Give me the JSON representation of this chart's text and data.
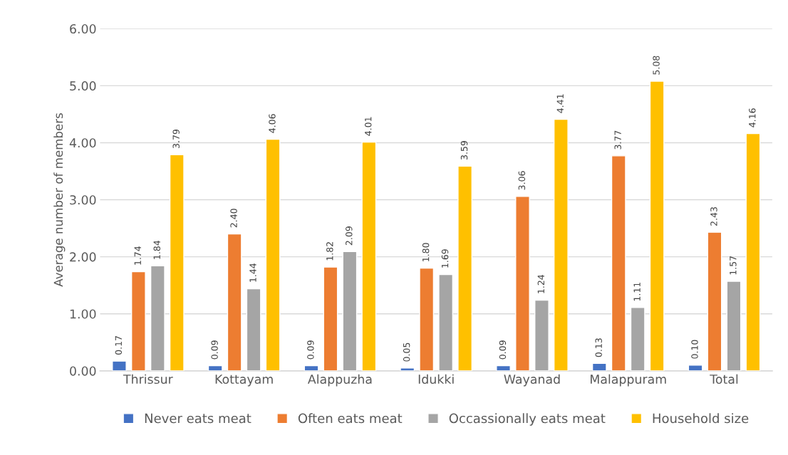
{
  "chart_data": {
    "type": "bar",
    "ylabel": "Average number of members",
    "categories": [
      "Thrissur",
      "Kottayam",
      "Alappuzha",
      "Idukki",
      "Wayanad",
      "Malappuram",
      "Total"
    ],
    "series": [
      {
        "name": "Never eats meat",
        "color": "#4472c4",
        "values": [
          0.17,
          0.09,
          0.09,
          0.05,
          0.09,
          0.13,
          0.1
        ],
        "value_labels": [
          "0.17",
          "0.09",
          "0.09",
          "0.05",
          "0.09",
          "0.13",
          "0.10"
        ]
      },
      {
        "name": "Often eats meat",
        "color": "#ed7d31",
        "values": [
          1.74,
          2.4,
          1.82,
          1.8,
          3.06,
          3.77,
          2.43
        ],
        "value_labels": [
          "1.74",
          "2.40",
          "1.82",
          "1.80",
          "3.06",
          "3.77",
          "2.43"
        ]
      },
      {
        "name": "Occassionally eats meat",
        "color": "#a5a5a5",
        "values": [
          1.84,
          1.44,
          2.09,
          1.69,
          1.24,
          1.11,
          1.57
        ],
        "value_labels": [
          "1.84",
          "1.44",
          "2.09",
          "1.69",
          "1.24",
          "1.11",
          "1.57"
        ]
      },
      {
        "name": "Household size",
        "color": "#ffc000",
        "values": [
          3.79,
          4.06,
          4.01,
          3.59,
          4.41,
          5.08,
          4.16
        ],
        "value_labels": [
          "3.79",
          "4.06",
          "4.01",
          "3.59",
          "4.41",
          "5.08",
          "4.16"
        ]
      }
    ],
    "ylim": [
      0,
      6
    ],
    "yticks": [
      {
        "value": 0,
        "label": "0.00"
      },
      {
        "value": 1,
        "label": "1.00"
      },
      {
        "value": 2,
        "label": "2.00"
      },
      {
        "value": 3,
        "label": "3.00"
      },
      {
        "value": 4,
        "label": "4.00"
      },
      {
        "value": 5,
        "label": "5.00"
      },
      {
        "value": 6,
        "label": "6.00"
      }
    ],
    "grid": "y",
    "legend": "bottom"
  }
}
